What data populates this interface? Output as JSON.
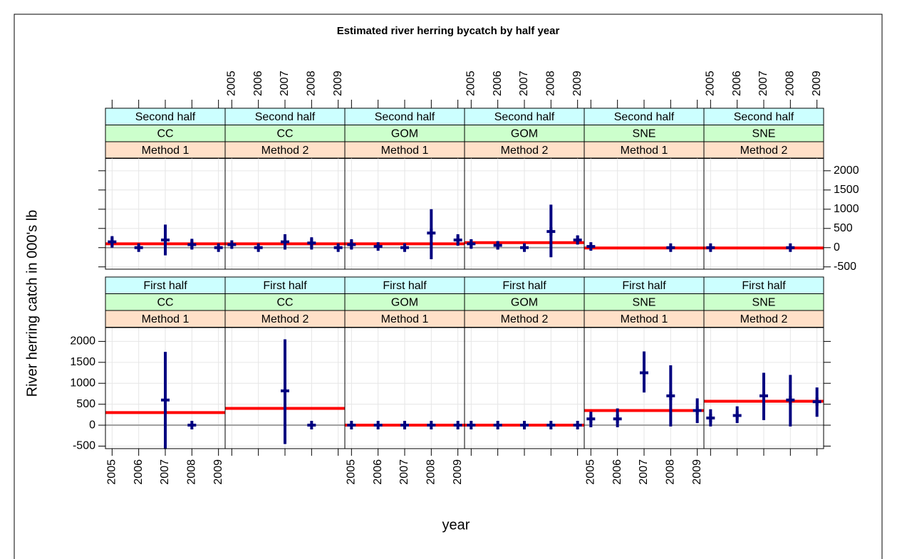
{
  "chart_data": {
    "type": "scatter",
    "title": "Estimated river herring bycatch by half year",
    "xlabel": "year",
    "ylabel": "River herring catch in 000's lb",
    "xlim": [
      2004.75,
      2009.25
    ],
    "xticks": [
      2005,
      2006,
      2007,
      2008,
      2009
    ],
    "ylim": [
      -560,
      2330
    ],
    "yticks": [
      -500,
      0,
      500,
      1000,
      1500,
      2000
    ],
    "grid": true,
    "strip_colors": [
      "#ccffff",
      "#ccffcc",
      "#ffe0c8"
    ],
    "point_color": "#000080",
    "mean_color": "#ff0000",
    "reference_color": "#a0a0a0",
    "panels": [
      {
        "strips": [
          "Second half",
          "CC",
          "Method 1"
        ],
        "x": [
          2005,
          2006,
          2007,
          2008,
          2009
        ],
        "values": [
          150,
          0,
          200,
          80,
          0
        ],
        "lower": [
          0,
          null,
          -200,
          -50,
          null
        ],
        "upper": [
          300,
          null,
          600,
          230,
          null
        ],
        "mean": 100
      },
      {
        "strips": [
          "Second half",
          "CC",
          "Method 2"
        ],
        "x": [
          2005,
          2006,
          2007,
          2008,
          2009
        ],
        "values": [
          80,
          0,
          150,
          120,
          0
        ],
        "lower": [
          null,
          null,
          -50,
          -50,
          null
        ],
        "upper": [
          null,
          null,
          350,
          270,
          null
        ],
        "mean": 100
      },
      {
        "strips": [
          "Second half",
          "GOM",
          "Method 1"
        ],
        "x": [
          2005,
          2006,
          2007,
          2008,
          2009
        ],
        "values": [
          80,
          30,
          0,
          380,
          200
        ],
        "lower": [
          -50,
          null,
          null,
          -300,
          50
        ],
        "upper": [
          220,
          null,
          null,
          1000,
          350
        ],
        "mean": 100
      },
      {
        "strips": [
          "Second half",
          "GOM",
          "Method 2"
        ],
        "x": [
          2005,
          2006,
          2007,
          2008,
          2009
        ],
        "values": [
          100,
          60,
          0,
          420,
          200
        ],
        "lower": [
          -30,
          -50,
          null,
          -250,
          80
        ],
        "upper": [
          220,
          170,
          null,
          1120,
          320
        ],
        "mean": 130
      },
      {
        "strips": [
          "Second half",
          "SNE",
          "Method 1"
        ],
        "x": [
          2005,
          2008
        ],
        "values": [
          30,
          0
        ],
        "lower": [
          null,
          null
        ],
        "upper": [
          null,
          null
        ],
        "mean": -10
      },
      {
        "strips": [
          "Second half",
          "SNE",
          "Method 2"
        ],
        "x": [
          2005,
          2008
        ],
        "values": [
          0,
          0
        ],
        "lower": [
          null,
          null
        ],
        "upper": [
          null,
          null
        ],
        "mean": -10
      },
      {
        "strips": [
          "First half",
          "CC",
          "Method 1"
        ],
        "x": [
          2007,
          2008
        ],
        "values": [
          600,
          0
        ],
        "lower": [
          -570,
          null
        ],
        "upper": [
          1750,
          null
        ],
        "mean": 300
      },
      {
        "strips": [
          "First half",
          "CC",
          "Method 2"
        ],
        "x": [
          2007,
          2008
        ],
        "values": [
          820,
          0
        ],
        "lower": [
          -450,
          null
        ],
        "upper": [
          2050,
          null
        ],
        "mean": 400
      },
      {
        "strips": [
          "First half",
          "GOM",
          "Method 1"
        ],
        "x": [
          2005,
          2006,
          2007,
          2008,
          2009
        ],
        "values": [
          0,
          0,
          0,
          0,
          0
        ],
        "lower": [
          null,
          null,
          null,
          null,
          null
        ],
        "upper": [
          null,
          null,
          null,
          null,
          null
        ],
        "mean": 0
      },
      {
        "strips": [
          "First half",
          "GOM",
          "Method 2"
        ],
        "x": [
          2005,
          2006,
          2007,
          2008,
          2009
        ],
        "values": [
          0,
          0,
          0,
          0,
          0
        ],
        "lower": [
          null,
          null,
          null,
          null,
          null
        ],
        "upper": [
          null,
          null,
          null,
          null,
          null
        ],
        "mean": 0
      },
      {
        "strips": [
          "First half",
          "SNE",
          "Method 1"
        ],
        "x": [
          2005,
          2006,
          2007,
          2008,
          2009
        ],
        "values": [
          150,
          150,
          1250,
          700,
          350
        ],
        "lower": [
          -50,
          -50,
          780,
          -30,
          50
        ],
        "upper": [
          320,
          400,
          1760,
          1430,
          640
        ],
        "mean": 350
      },
      {
        "strips": [
          "First half",
          "SNE",
          "Method 2"
        ],
        "x": [
          2005,
          2006,
          2007,
          2008,
          2009
        ],
        "values": [
          170,
          230,
          700,
          600,
          560
        ],
        "lower": [
          -30,
          50,
          120,
          -30,
          200
        ],
        "upper": [
          380,
          450,
          1250,
          1200,
          900
        ],
        "mean": 570
      }
    ]
  }
}
